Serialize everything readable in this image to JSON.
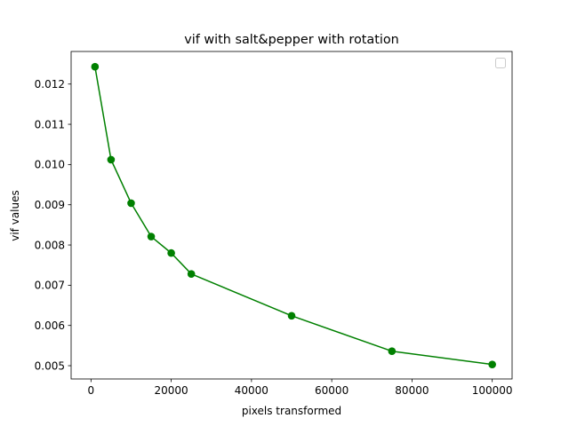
{
  "chart_data": {
    "type": "line",
    "title": "vif with salt&pepper with rotation",
    "xlabel": "pixels transformed",
    "ylabel": "vif values",
    "xlim": [
      -4950,
      104950
    ],
    "ylim": [
      0.00467,
      0.01281
    ],
    "x_ticks": [
      0,
      20000,
      40000,
      60000,
      80000,
      100000
    ],
    "x_tick_labels": [
      "0",
      "20000",
      "40000",
      "60000",
      "80000",
      "100000"
    ],
    "y_ticks": [
      0.005,
      0.006,
      0.007,
      0.008,
      0.009,
      0.01,
      0.011,
      0.012
    ],
    "y_tick_labels": [
      "0.005",
      "0.006",
      "0.007",
      "0.008",
      "0.009",
      "0.010",
      "0.011",
      "0.012"
    ],
    "grid": false,
    "legend": {
      "placement": "top-right",
      "entries": []
    },
    "series": [
      {
        "color": "#008000",
        "marker": "circle",
        "x": [
          1000,
          5000,
          10000,
          15000,
          20000,
          25000,
          50000,
          75000,
          100000
        ],
        "y": [
          0.01243,
          0.01012,
          0.00904,
          0.00821,
          0.0078,
          0.00728,
          0.00624,
          0.00536,
          0.00503
        ]
      }
    ]
  }
}
